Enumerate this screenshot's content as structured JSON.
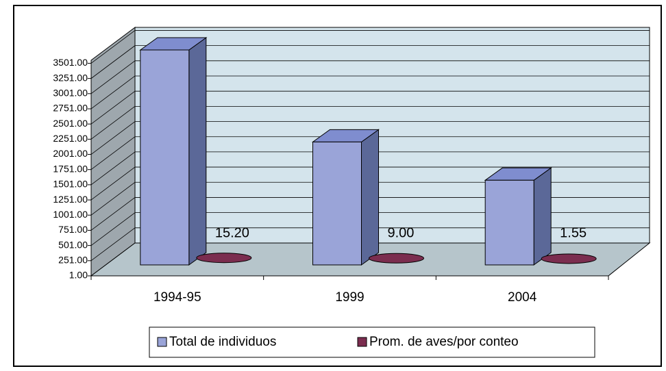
{
  "chart_data": {
    "type": "bar3d",
    "categories": [
      "1994-95",
      "1999",
      "2004"
    ],
    "series": [
      {
        "name": "Total de individuos",
        "color": "#9aa4d8",
        "values": [
          3540,
          2025,
          1395
        ]
      },
      {
        "name": "Prom. de aves/por conteo",
        "color": "#7b2d4f",
        "values": [
          15.2,
          9,
          1.55
        ],
        "value_labels": [
          "15.20",
          "9.00",
          "1.55"
        ]
      }
    ],
    "ylim": [
      1,
      3551
    ],
    "yticks": [
      {
        "value": 1,
        "label": "1.00"
      },
      {
        "value": 251,
        "label": "251.00"
      },
      {
        "value": 501,
        "label": "501.00"
      },
      {
        "value": 751,
        "label": "751.00"
      },
      {
        "value": 1001,
        "label": "1001.00"
      },
      {
        "value": 1251,
        "label": "1251.00"
      },
      {
        "value": 1501,
        "label": "1501.00"
      },
      {
        "value": 1751,
        "label": "1751.00"
      },
      {
        "value": 2001,
        "label": "2001.00"
      },
      {
        "value": 2251,
        "label": "2251.00"
      },
      {
        "value": 2501,
        "label": "2501.00"
      },
      {
        "value": 2751,
        "label": "2751.00"
      },
      {
        "value": 3001,
        "label": "3001.00"
      },
      {
        "value": 3251,
        "label": "3251.00"
      },
      {
        "value": 3501,
        "label": "3501.00"
      }
    ],
    "grid": true,
    "legend": "bottom"
  }
}
